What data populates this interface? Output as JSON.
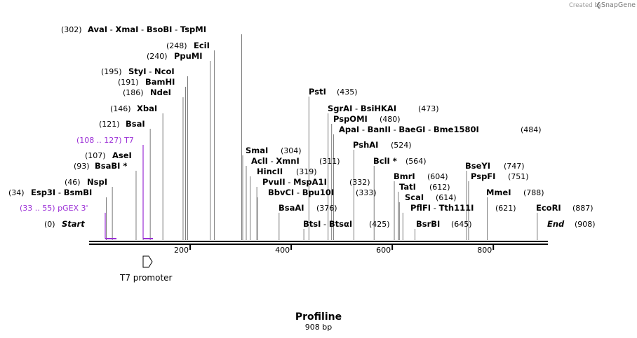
{
  "credit": {
    "prefix": "Created by",
    "brand": "SnapGene"
  },
  "sequence": {
    "name": "Profiline",
    "length_label": "908 bp",
    "length": 908
  },
  "axis": {
    "ticks": [
      {
        "value": 200,
        "label": "200"
      },
      {
        "value": 400,
        "label": "400"
      },
      {
        "value": 600,
        "label": "600"
      },
      {
        "value": 800,
        "label": "800"
      }
    ]
  },
  "features": [
    {
      "name": "T7 promoter",
      "start": 108,
      "end": 127
    }
  ],
  "primers": [
    {
      "name": "T7",
      "range": "(108 .. 127)",
      "start": 108,
      "end": 127
    },
    {
      "name": "pGEX 3'",
      "range": "(33 .. 55)",
      "start": 33,
      "end": 55
    }
  ],
  "sites": [
    {
      "pos": 302,
      "pos_label": "(302)",
      "enzymes": [
        "AvaI",
        "XmaI",
        "BsoBI",
        "TspMI"
      ]
    },
    {
      "pos": 248,
      "pos_label": "(248)",
      "enzymes": [
        "EciI"
      ]
    },
    {
      "pos": 240,
      "pos_label": "(240)",
      "enzymes": [
        "PpuMI"
      ]
    },
    {
      "pos": 195,
      "pos_label": "(195)",
      "enzymes": [
        "StyI",
        "NcoI"
      ]
    },
    {
      "pos": 191,
      "pos_label": "(191)",
      "enzymes": [
        "BamHI"
      ]
    },
    {
      "pos": 186,
      "pos_label": "(186)",
      "enzymes": [
        "NdeI"
      ]
    },
    {
      "pos": 146,
      "pos_label": "(146)",
      "enzymes": [
        "XbaI"
      ]
    },
    {
      "pos": 121,
      "pos_label": "(121)",
      "enzymes": [
        "BsaI"
      ]
    },
    {
      "pos": 107,
      "pos_label": "(107)",
      "enzymes": [
        "AseI"
      ]
    },
    {
      "pos": 93,
      "pos_label": "(93)",
      "enzymes": [
        "BsaBI *"
      ]
    },
    {
      "pos": 46,
      "pos_label": "(46)",
      "enzymes": [
        "NspI"
      ]
    },
    {
      "pos": 34,
      "pos_label": "(34)",
      "enzymes": [
        "Esp3I",
        "BsmBI"
      ]
    },
    {
      "pos": 0,
      "pos_label": "(0)",
      "enzymes": [
        "Start"
      ]
    },
    {
      "pos": 435,
      "pos_label": "(435)",
      "enzymes": [
        "PstI"
      ]
    },
    {
      "pos": 473,
      "pos_label": "(473)",
      "enzymes": [
        "SgrAI",
        "BsiHKAI"
      ]
    },
    {
      "pos": 480,
      "pos_label": "(480)",
      "enzymes": [
        "PspOMI"
      ]
    },
    {
      "pos": 484,
      "pos_label": "(484)",
      "enzymes": [
        "ApaI",
        "BanII",
        "BaeGI",
        "Bme1580I"
      ]
    },
    {
      "pos": 524,
      "pos_label": "(524)",
      "enzymes": [
        "PshAI"
      ]
    },
    {
      "pos": 304,
      "pos_label": "(304)",
      "enzymes": [
        "SmaI"
      ]
    },
    {
      "pos": 311,
      "pos_label": "(311)",
      "enzymes": [
        "AclI",
        "XmnI"
      ]
    },
    {
      "pos": 319,
      "pos_label": "(319)",
      "enzymes": [
        "HincII"
      ]
    },
    {
      "pos": 332,
      "pos_label": "(332)",
      "enzymes": [
        "PvuII",
        "MspA1I"
      ]
    },
    {
      "pos": 333,
      "pos_label": "(333)",
      "enzymes": [
        "BbvCI",
        "Bpu10I"
      ]
    },
    {
      "pos": 376,
      "pos_label": "(376)",
      "enzymes": [
        "BsaAI"
      ]
    },
    {
      "pos": 425,
      "pos_label": "(425)",
      "enzymes": [
        "BtsI",
        "BtsαI"
      ]
    },
    {
      "pos": 564,
      "pos_label": "(564)",
      "enzymes": [
        "BclI *"
      ]
    },
    {
      "pos": 604,
      "pos_label": "(604)",
      "enzymes": [
        "BmrI"
      ]
    },
    {
      "pos": 612,
      "pos_label": "(612)",
      "enzymes": [
        "TatI"
      ]
    },
    {
      "pos": 614,
      "pos_label": "(614)",
      "enzymes": [
        "ScaI"
      ]
    },
    {
      "pos": 621,
      "pos_label": "(621)",
      "enzymes": [
        "PflFI",
        "Tth111I"
      ]
    },
    {
      "pos": 645,
      "pos_label": "(645)",
      "enzymes": [
        "BsrBI"
      ]
    },
    {
      "pos": 747,
      "pos_label": "(747)",
      "enzymes": [
        "BseYI"
      ]
    },
    {
      "pos": 751,
      "pos_label": "(751)",
      "enzymes": [
        "PspFI"
      ]
    },
    {
      "pos": 788,
      "pos_label": "(788)",
      "enzymes": [
        "MmeI"
      ]
    },
    {
      "pos": 887,
      "pos_label": "(887)",
      "enzymes": [
        "EcoRI"
      ]
    },
    {
      "pos": 908,
      "pos_label": "(908)",
      "enzymes": [
        "End"
      ]
    }
  ]
}
